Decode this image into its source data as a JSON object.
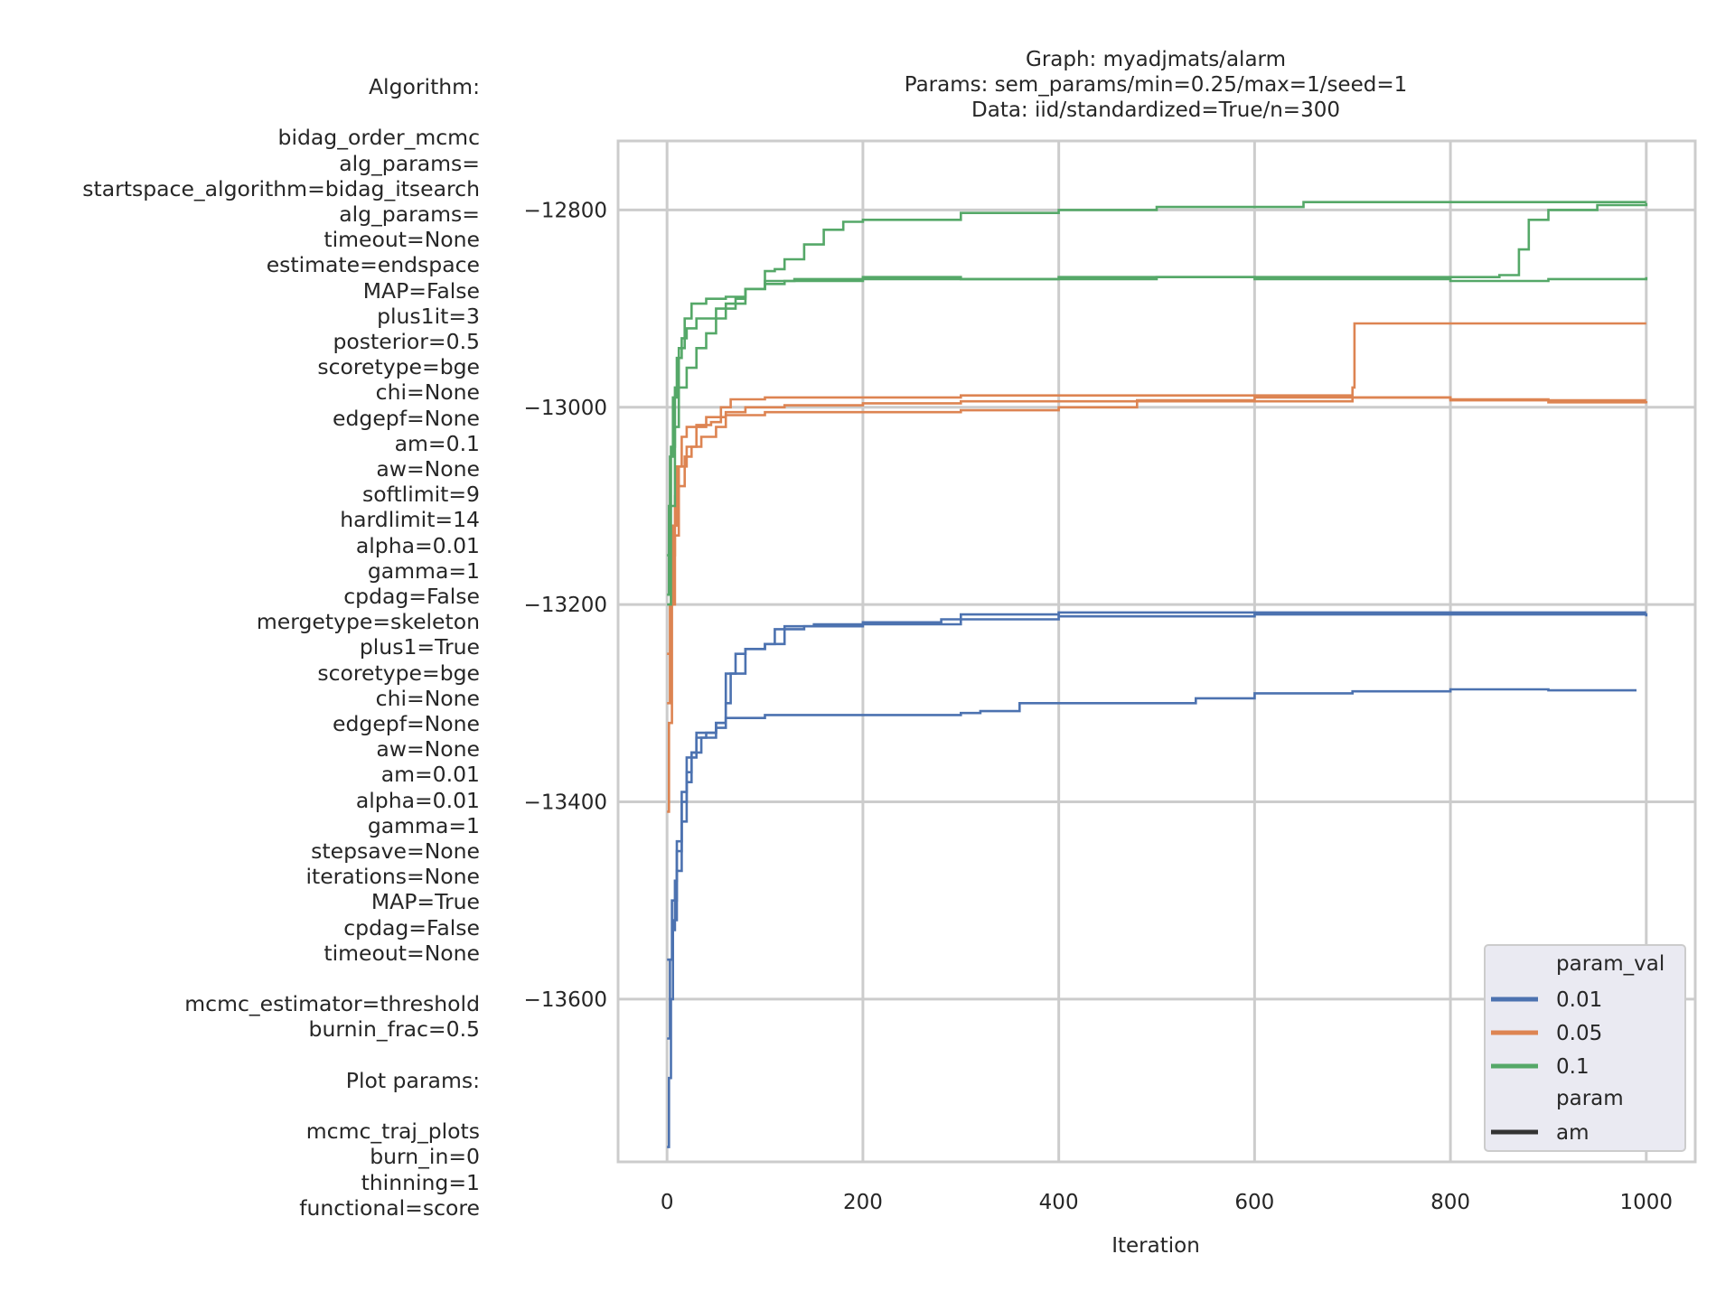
{
  "sidebar": {
    "lines": [
      "Algorithm:",
      "",
      "bidag_order_mcmc",
      "alg_params=",
      "startspace_algorithm=bidag_itsearch",
      "alg_params=",
      "timeout=None",
      "estimate=endspace",
      "MAP=False",
      "plus1it=3",
      "posterior=0.5",
      "scoretype=bge",
      "chi=None",
      "edgepf=None",
      "am=0.1",
      "aw=None",
      "softlimit=9",
      "hardlimit=14",
      "alpha=0.01",
      "gamma=1",
      "cpdag=False",
      "mergetype=skeleton",
      "plus1=True",
      "scoretype=bge",
      "chi=None",
      "edgepf=None",
      "aw=None",
      "am=0.01",
      "alpha=0.01",
      "gamma=1",
      "stepsave=None",
      "iterations=None",
      "MAP=True",
      "cpdag=False",
      "timeout=None",
      "",
      "mcmc_estimator=threshold",
      "burnin_frac=0.5",
      "",
      "Plot params:",
      "",
      "mcmc_traj_plots",
      "burn_in=0",
      "thinning=1",
      "functional=score"
    ]
  },
  "chart_data": {
    "type": "line",
    "title_lines": [
      "Graph: myadjmats/alarm",
      "Params: sem_params/min=0.25/max=1/seed=1",
      "Data: iid/standardized=True/n=300"
    ],
    "xlabel": "Iteration",
    "ylabel": "",
    "xlim": [
      -50,
      1050
    ],
    "ylim": [
      -13765,
      -12730
    ],
    "xticks": [
      0,
      200,
      400,
      600,
      800,
      1000
    ],
    "yticks": [
      -13600,
      -13400,
      -13200,
      -13000,
      -12800
    ],
    "ytick_labels": [
      "−13600",
      "−13400",
      "−13200",
      "−13000",
      "−12800"
    ],
    "grid": true,
    "legend": {
      "placement": "bottom-right",
      "hue_title": "param_val",
      "style_title": "param",
      "style_entry": "am",
      "style_color": "#333333"
    },
    "series": [
      {
        "name": "0.01",
        "color": "#4c72b0",
        "points": [
          [
            0,
            -13750
          ],
          [
            2,
            -13680
          ],
          [
            4,
            -13600
          ],
          [
            6,
            -13530
          ],
          [
            8,
            -13480
          ],
          [
            10,
            -13440
          ],
          [
            15,
            -13400
          ],
          [
            20,
            -13370
          ],
          [
            25,
            -13350
          ],
          [
            30,
            -13335
          ],
          [
            40,
            -13330
          ],
          [
            50,
            -13320
          ],
          [
            60,
            -13270
          ],
          [
            70,
            -13250
          ],
          [
            80,
            -13245
          ],
          [
            100,
            -13240
          ],
          [
            120,
            -13222
          ],
          [
            150,
            -13220
          ],
          [
            200,
            -13218
          ],
          [
            280,
            -13215
          ],
          [
            300,
            -13210
          ],
          [
            400,
            -13208
          ],
          [
            500,
            -13208
          ],
          [
            600,
            -13208
          ],
          [
            700,
            -13208
          ],
          [
            800,
            -13208
          ],
          [
            1000,
            -13208
          ]
        ]
      },
      {
        "name": "0.01",
        "color": "#4c72b0",
        "points": [
          [
            0,
            -13640
          ],
          [
            3,
            -13560
          ],
          [
            6,
            -13520
          ],
          [
            10,
            -13470
          ],
          [
            15,
            -13420
          ],
          [
            20,
            -13380
          ],
          [
            25,
            -13350
          ],
          [
            35,
            -13335
          ],
          [
            50,
            -13325
          ],
          [
            60,
            -13300
          ],
          [
            65,
            -13270
          ],
          [
            80,
            -13245
          ],
          [
            100,
            -13240
          ],
          [
            110,
            -13225
          ],
          [
            140,
            -13222
          ],
          [
            200,
            -13220
          ],
          [
            300,
            -13215
          ],
          [
            400,
            -13212
          ],
          [
            500,
            -13212
          ],
          [
            600,
            -13210
          ],
          [
            700,
            -13210
          ],
          [
            800,
            -13210
          ],
          [
            1000,
            -13212
          ]
        ]
      },
      {
        "name": "0.01",
        "color": "#4c72b0",
        "points": [
          [
            0,
            -13560
          ],
          [
            5,
            -13500
          ],
          [
            10,
            -13450
          ],
          [
            15,
            -13390
          ],
          [
            20,
            -13355
          ],
          [
            30,
            -13330
          ],
          [
            50,
            -13320
          ],
          [
            60,
            -13315
          ],
          [
            100,
            -13312
          ],
          [
            200,
            -13312
          ],
          [
            300,
            -13310
          ],
          [
            320,
            -13308
          ],
          [
            360,
            -13300
          ],
          [
            400,
            -13300
          ],
          [
            500,
            -13300
          ],
          [
            540,
            -13295
          ],
          [
            600,
            -13290
          ],
          [
            700,
            -13288
          ],
          [
            800,
            -13286
          ],
          [
            900,
            -13287
          ],
          [
            990,
            -13287
          ]
        ]
      },
      {
        "name": "0.05",
        "color": "#dd8452",
        "points": [
          [
            0,
            -13410
          ],
          [
            2,
            -13320
          ],
          [
            5,
            -13200
          ],
          [
            8,
            -13130
          ],
          [
            12,
            -13080
          ],
          [
            18,
            -13050
          ],
          [
            25,
            -13040
          ],
          [
            35,
            -13030
          ],
          [
            50,
            -13020
          ],
          [
            60,
            -13005
          ],
          [
            80,
            -13000
          ],
          [
            120,
            -12998
          ],
          [
            200,
            -12996
          ],
          [
            300,
            -12994
          ],
          [
            400,
            -12994
          ],
          [
            500,
            -12994
          ],
          [
            600,
            -12994
          ],
          [
            690,
            -12994
          ],
          [
            700,
            -12990
          ],
          [
            800,
            -12993
          ],
          [
            900,
            -12995
          ],
          [
            1000,
            -12996
          ]
        ]
      },
      {
        "name": "0.05",
        "color": "#dd8452",
        "points": [
          [
            0,
            -13300
          ],
          [
            3,
            -13200
          ],
          [
            6,
            -13120
          ],
          [
            10,
            -13060
          ],
          [
            15,
            -13030
          ],
          [
            20,
            -13020
          ],
          [
            30,
            -13018
          ],
          [
            45,
            -13015
          ],
          [
            55,
            -13000
          ],
          [
            65,
            -12992
          ],
          [
            100,
            -12990
          ],
          [
            200,
            -12990
          ],
          [
            300,
            -12988
          ],
          [
            400,
            -12988
          ],
          [
            500,
            -12988
          ],
          [
            600,
            -12988
          ],
          [
            680,
            -12988
          ],
          [
            700,
            -12980
          ],
          [
            702,
            -12915
          ],
          [
            800,
            -12915
          ],
          [
            900,
            -12915
          ],
          [
            1000,
            -12915
          ]
        ]
      },
      {
        "name": "0.05",
        "color": "#dd8452",
        "points": [
          [
            0,
            -13250
          ],
          [
            4,
            -13150
          ],
          [
            8,
            -13090
          ],
          [
            12,
            -13060
          ],
          [
            20,
            -13040
          ],
          [
            30,
            -13020
          ],
          [
            40,
            -13010
          ],
          [
            60,
            -13008
          ],
          [
            100,
            -13005
          ],
          [
            200,
            -13005
          ],
          [
            300,
            -13003
          ],
          [
            400,
            -13000
          ],
          [
            480,
            -12993
          ],
          [
            600,
            -12990
          ],
          [
            700,
            -12990
          ],
          [
            800,
            -12992
          ],
          [
            900,
            -12993
          ],
          [
            1000,
            -12993
          ]
        ]
      },
      {
        "name": "0.1",
        "color": "#55a868",
        "points": [
          [
            0,
            -13190
          ],
          [
            2,
            -13100
          ],
          [
            4,
            -13040
          ],
          [
            8,
            -12980
          ],
          [
            12,
            -12940
          ],
          [
            18,
            -12910
          ],
          [
            25,
            -12895
          ],
          [
            40,
            -12890
          ],
          [
            60,
            -12888
          ],
          [
            80,
            -12880
          ],
          [
            100,
            -12875
          ],
          [
            120,
            -12872
          ],
          [
            200,
            -12870
          ],
          [
            300,
            -12870
          ],
          [
            400,
            -12868
          ],
          [
            500,
            -12868
          ],
          [
            600,
            -12868
          ],
          [
            700,
            -12868
          ],
          [
            800,
            -12868
          ],
          [
            850,
            -12866
          ],
          [
            870,
            -12840
          ],
          [
            880,
            -12810
          ],
          [
            900,
            -12800
          ],
          [
            950,
            -12795
          ],
          [
            1000,
            -12793
          ]
        ]
      },
      {
        "name": "0.1",
        "color": "#55a868",
        "points": [
          [
            0,
            -13150
          ],
          [
            3,
            -13050
          ],
          [
            6,
            -12990
          ],
          [
            10,
            -12950
          ],
          [
            15,
            -12930
          ],
          [
            20,
            -12920
          ],
          [
            30,
            -12910
          ],
          [
            50,
            -12900
          ],
          [
            60,
            -12895
          ],
          [
            80,
            -12880
          ],
          [
            100,
            -12872
          ],
          [
            130,
            -12870
          ],
          [
            200,
            -12868
          ],
          [
            300,
            -12870
          ],
          [
            400,
            -12870
          ],
          [
            500,
            -12868
          ],
          [
            600,
            -12870
          ],
          [
            700,
            -12870
          ],
          [
            800,
            -12872
          ],
          [
            900,
            -12870
          ],
          [
            1000,
            -12868
          ]
        ]
      },
      {
        "name": "0.1",
        "color": "#55a868",
        "points": [
          [
            0,
            -13200
          ],
          [
            4,
            -13100
          ],
          [
            8,
            -13020
          ],
          [
            12,
            -12980
          ],
          [
            20,
            -12960
          ],
          [
            30,
            -12940
          ],
          [
            40,
            -12925
          ],
          [
            50,
            -12910
          ],
          [
            60,
            -12900
          ],
          [
            70,
            -12890
          ],
          [
            80,
            -12880
          ],
          [
            100,
            -12862
          ],
          [
            110,
            -12860
          ],
          [
            120,
            -12850
          ],
          [
            140,
            -12835
          ],
          [
            160,
            -12820
          ],
          [
            180,
            -12812
          ],
          [
            200,
            -12810
          ],
          [
            300,
            -12803
          ],
          [
            400,
            -12800
          ],
          [
            500,
            -12797
          ],
          [
            600,
            -12797
          ],
          [
            650,
            -12792
          ],
          [
            700,
            -12792
          ],
          [
            800,
            -12792
          ],
          [
            900,
            -12792
          ],
          [
            1000,
            -12792
          ]
        ]
      }
    ]
  }
}
